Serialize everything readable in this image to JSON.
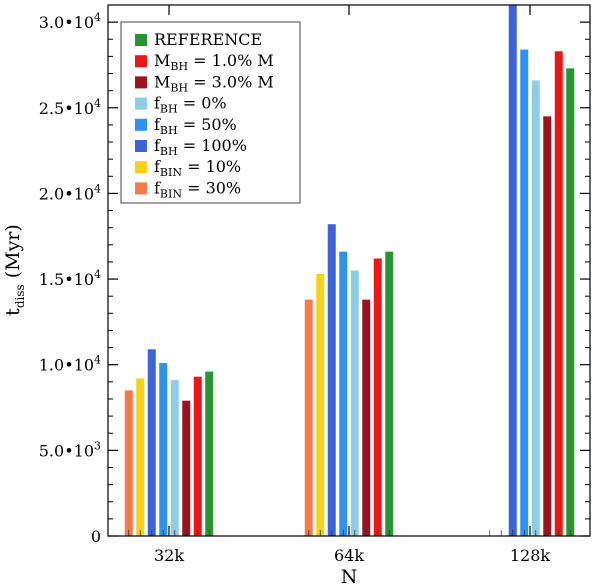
{
  "chart_data": {
    "type": "bar",
    "title": "",
    "xlabel": "N",
    "ylabel": "t",
    "ylabel_sub": "diss",
    "ylabel_unit": "(Myr)",
    "ylim": [
      0,
      31000
    ],
    "grid": false,
    "legend_position": "top-left",
    "categories": [
      "32k",
      "64k",
      "128k"
    ],
    "y_ticks": [
      {
        "value": 0,
        "label": "0"
      },
      {
        "value": 5000,
        "label": "5.0•10",
        "exp": "3"
      },
      {
        "value": 10000,
        "label": "1.0•10",
        "exp": "4"
      },
      {
        "value": 15000,
        "label": "1.5•10",
        "exp": "4"
      },
      {
        "value": 20000,
        "label": "2.0•10",
        "exp": "4"
      },
      {
        "value": 25000,
        "label": "2.5•10",
        "exp": "4"
      },
      {
        "value": 30000,
        "label": "3.0•10",
        "exp": "4"
      }
    ],
    "series": [
      {
        "name": "f_BIN = 30%",
        "base": "f",
        "sub": "BIN",
        "rest": " = 30%",
        "color": "#f47c4c",
        "values": [
          8500,
          13800,
          null
        ]
      },
      {
        "name": "f_BIN = 10%",
        "base": "f",
        "sub": "BIN",
        "rest": " = 10%",
        "color": "#f7d21a",
        "values": [
          9200,
          15300,
          null
        ]
      },
      {
        "name": "f_BH = 100%",
        "base": "f",
        "sub": "BH",
        "rest": " = 100%",
        "color": "#3e62d8",
        "values": [
          10900,
          18200,
          31000
        ]
      },
      {
        "name": "f_BH = 50%",
        "base": "f",
        "sub": "BH",
        "rest": " = 50%",
        "color": "#2f92ee",
        "values": [
          10100,
          16600,
          28400
        ]
      },
      {
        "name": "f_BH = 0%",
        "base": "f",
        "sub": "BH",
        "rest": " = 0%",
        "color": "#8ecde8",
        "values": [
          9100,
          15500,
          26600
        ]
      },
      {
        "name": "M_BH = 3.0% M",
        "base": "M",
        "sub": "BH",
        "rest": " = 3.0% M",
        "color": "#9c1320",
        "values": [
          7900,
          13800,
          24500
        ]
      },
      {
        "name": "M_BH = 1.0% M",
        "base": "M",
        "sub": "BH",
        "rest": " = 1.0% M",
        "color": "#e81818",
        "values": [
          9300,
          16200,
          28300
        ]
      },
      {
        "name": "REFERENCE",
        "base": "REFERENCE",
        "sub": "",
        "rest": "",
        "color": "#2a9431",
        "values": [
          9600,
          16600,
          27300
        ]
      }
    ],
    "legend_order": [
      7,
      6,
      5,
      4,
      3,
      2,
      1,
      0
    ]
  }
}
